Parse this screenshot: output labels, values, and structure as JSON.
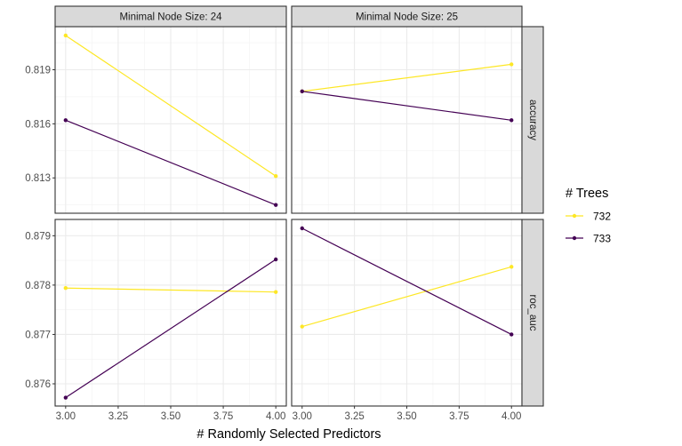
{
  "chart_data": {
    "type": "line",
    "xlabel": "# Randomly Selected Predictors",
    "x_ticks": [
      3.0,
      3.25,
      3.5,
      3.75,
      4.0
    ],
    "x_tick_labels": [
      "3.00",
      "3.25",
      "3.50",
      "3.75",
      "4.00"
    ],
    "xlim": [
      2.95,
      4.05
    ],
    "col_facets": [
      "Minimal Node Size: 24",
      "Minimal Node Size: 25"
    ],
    "row_facets": [
      {
        "label": "accuracy",
        "ylim": [
          0.81104,
          0.82139
        ],
        "ticks": [
          0.813,
          0.816,
          0.819
        ],
        "tick_labels": [
          "0.813",
          "0.816",
          "0.819"
        ]
      },
      {
        "label": "roc_auc",
        "ylim": [
          0.87555,
          0.87933
        ],
        "ticks": [
          0.876,
          0.877,
          0.878,
          0.879
        ],
        "tick_labels": [
          "0.876",
          "0.877",
          "0.878",
          "0.879"
        ]
      }
    ],
    "legend": {
      "title": "# Trees",
      "placement": "right"
    },
    "series": [
      {
        "name": "732",
        "color": "#FDE725",
        "panels": [
          {
            "row": 0,
            "col": 0,
            "x": [
              3,
              4
            ],
            "y": [
              0.8209,
              0.8131
            ]
          },
          {
            "row": 0,
            "col": 1,
            "x": [
              3,
              4
            ],
            "y": [
              0.8178,
              0.8193
            ]
          },
          {
            "row": 1,
            "col": 0,
            "x": [
              3,
              4
            ],
            "y": [
              0.87794,
              0.87786
            ]
          },
          {
            "row": 1,
            "col": 1,
            "x": [
              3,
              4
            ],
            "y": [
              0.87716,
              0.87837
            ]
          }
        ]
      },
      {
        "name": "733",
        "color": "#440154",
        "panels": [
          {
            "row": 0,
            "col": 0,
            "x": [
              3,
              4
            ],
            "y": [
              0.8162,
              0.8115
            ]
          },
          {
            "row": 0,
            "col": 1,
            "x": [
              3,
              4
            ],
            "y": [
              0.8178,
              0.8162
            ]
          },
          {
            "row": 1,
            "col": 0,
            "x": [
              3,
              4
            ],
            "y": [
              0.87572,
              0.87852
            ]
          },
          {
            "row": 1,
            "col": 1,
            "x": [
              3,
              4
            ],
            "y": [
              0.87915,
              0.877
            ]
          }
        ]
      }
    ]
  }
}
